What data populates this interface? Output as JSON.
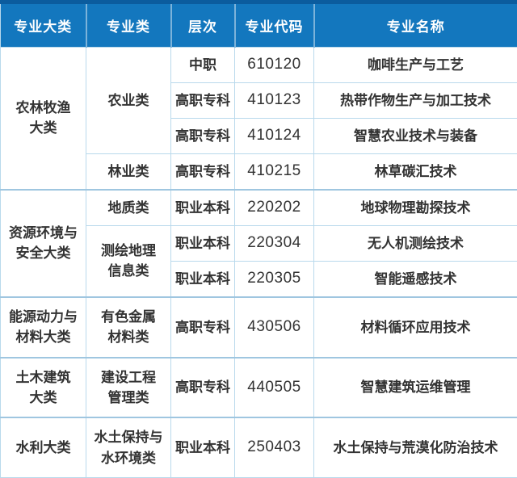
{
  "colors": {
    "header_bg": "#1377be",
    "header_top": "#0b5c9e",
    "header_divider": "#7cb3da",
    "header_text": "#ffffff",
    "border": "#b9d9ec",
    "group_border": "#9fc6e0",
    "text": "#333333"
  },
  "table": {
    "headers": [
      "专业大类",
      "专业类",
      "层次",
      "专业代码",
      "专业名称"
    ],
    "col_names": [
      "cell-major-category",
      "cell-category",
      "cell-level",
      "cell-code",
      "cell-name"
    ],
    "rows": [
      {
        "group_start": false,
        "cells": [
          {
            "col": 0,
            "rowspan": 4,
            "text": "农林牧渔\n大类"
          },
          {
            "col": 1,
            "rowspan": 3,
            "text": "农业类"
          },
          {
            "col": 2,
            "text": "中职"
          },
          {
            "col": 3,
            "text": "610120"
          },
          {
            "col": 4,
            "text": "咖啡生产与工艺"
          }
        ]
      },
      {
        "group_start": false,
        "cells": [
          {
            "col": 2,
            "text": "高职专科"
          },
          {
            "col": 3,
            "text": "410123"
          },
          {
            "col": 4,
            "text": "热带作物生产与加工技术"
          }
        ]
      },
      {
        "group_start": false,
        "cells": [
          {
            "col": 2,
            "text": "高职专科"
          },
          {
            "col": 3,
            "text": "410124"
          },
          {
            "col": 4,
            "text": "智慧农业技术与装备"
          }
        ]
      },
      {
        "group_start": false,
        "cells": [
          {
            "col": 1,
            "text": "林业类"
          },
          {
            "col": 2,
            "text": "高职专科"
          },
          {
            "col": 3,
            "text": "410215"
          },
          {
            "col": 4,
            "text": "林草碳汇技术"
          }
        ]
      },
      {
        "group_start": true,
        "cells": [
          {
            "col": 0,
            "rowspan": 3,
            "text": "资源环境与\n安全大类"
          },
          {
            "col": 1,
            "text": "地质类"
          },
          {
            "col": 2,
            "text": "职业本科"
          },
          {
            "col": 3,
            "text": "220202"
          },
          {
            "col": 4,
            "text": "地球物理勘探技术"
          }
        ]
      },
      {
        "group_start": false,
        "cells": [
          {
            "col": 1,
            "rowspan": 2,
            "text": "测绘地理\n信息类"
          },
          {
            "col": 2,
            "text": "职业本科"
          },
          {
            "col": 3,
            "text": "220304"
          },
          {
            "col": 4,
            "text": "无人机测绘技术"
          }
        ]
      },
      {
        "group_start": false,
        "cells": [
          {
            "col": 2,
            "text": "职业本科"
          },
          {
            "col": 3,
            "text": "220305"
          },
          {
            "col": 4,
            "text": "智能遥感技术"
          }
        ]
      },
      {
        "group_start": true,
        "cells": [
          {
            "col": 0,
            "text": "能源动力与\n材料大类"
          },
          {
            "col": 1,
            "text": "有色金属\n材料类"
          },
          {
            "col": 2,
            "text": "高职专科"
          },
          {
            "col": 3,
            "text": "430506"
          },
          {
            "col": 4,
            "text": "材料循环应用技术"
          }
        ]
      },
      {
        "group_start": true,
        "cells": [
          {
            "col": 0,
            "text": "土木建筑\n大类"
          },
          {
            "col": 1,
            "text": "建设工程\n管理类"
          },
          {
            "col": 2,
            "text": "高职专科"
          },
          {
            "col": 3,
            "text": "440505"
          },
          {
            "col": 4,
            "text": "智慧建筑运维管理"
          }
        ]
      },
      {
        "group_start": true,
        "cells": [
          {
            "col": 0,
            "text": "水利大类"
          },
          {
            "col": 1,
            "text": "水土保持与\n水环境类"
          },
          {
            "col": 2,
            "text": "职业本科"
          },
          {
            "col": 3,
            "text": "250403"
          },
          {
            "col": 4,
            "text": "水土保持与荒漠化防治技术"
          }
        ]
      }
    ]
  },
  "chart_data": {
    "type": "table",
    "title": "",
    "columns": [
      "专业大类",
      "专业类",
      "层次",
      "专业代码",
      "专业名称"
    ],
    "rows": [
      [
        "农林牧渔大类",
        "农业类",
        "中职",
        "610120",
        "咖啡生产与工艺"
      ],
      [
        "农林牧渔大类",
        "农业类",
        "高职专科",
        "410123",
        "热带作物生产与加工技术"
      ],
      [
        "农林牧渔大类",
        "农业类",
        "高职专科",
        "410124",
        "智慧农业技术与装备"
      ],
      [
        "农林牧渔大类",
        "林业类",
        "高职专科",
        "410215",
        "林草碳汇技术"
      ],
      [
        "资源环境与安全大类",
        "地质类",
        "职业本科",
        "220202",
        "地球物理勘探技术"
      ],
      [
        "资源环境与安全大类",
        "测绘地理信息类",
        "职业本科",
        "220304",
        "无人机测绘技术"
      ],
      [
        "资源环境与安全大类",
        "测绘地理信息类",
        "职业本科",
        "220305",
        "智能遥感技术"
      ],
      [
        "能源动力与材料大类",
        "有色金属材料类",
        "高职专科",
        "430506",
        "材料循环应用技术"
      ],
      [
        "土木建筑大类",
        "建设工程管理类",
        "高职专科",
        "440505",
        "智慧建筑运维管理"
      ],
      [
        "水利大类",
        "水土保持与水环境类",
        "职业本科",
        "250403",
        "水土保持与荒漠化防治技术"
      ]
    ]
  }
}
